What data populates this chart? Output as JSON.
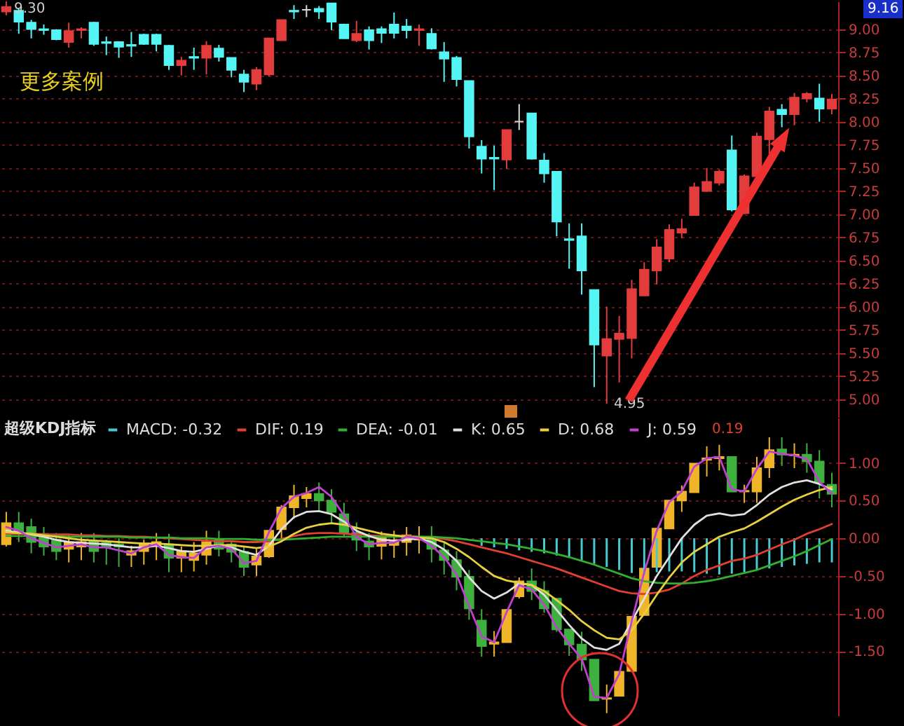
{
  "chart_data": [
    {
      "type": "candlestick",
      "categories": [
        null,
        null,
        null,
        null,
        null,
        null,
        null,
        null,
        null,
        null,
        null,
        null,
        null,
        null,
        null,
        null,
        null,
        null,
        null,
        null,
        null,
        null,
        null,
        null,
        null,
        null,
        null,
        null,
        null,
        null,
        null,
        null,
        null,
        null,
        null,
        null,
        null,
        null,
        null,
        null,
        null,
        null,
        null,
        null,
        null,
        null,
        null,
        null,
        null,
        null,
        null,
        null,
        null,
        null,
        null,
        null,
        null,
        null,
        null,
        null,
        null,
        null,
        null,
        null,
        null,
        null,
        null
      ],
      "ohlc": [
        [
          9.19,
          9.3,
          9.15,
          9.24
        ],
        [
          9.2,
          9.23,
          8.95,
          9.08
        ],
        [
          9.07,
          9.1,
          8.9,
          9.0
        ],
        [
          9.0,
          9.05,
          8.94,
          8.99
        ],
        [
          8.99,
          9.0,
          8.88,
          8.89
        ],
        [
          8.86,
          9.07,
          8.8,
          8.98
        ],
        [
          8.99,
          9.02,
          8.9,
          9.0
        ],
        [
          9.07,
          9.08,
          8.82,
          8.84
        ],
        [
          8.86,
          8.92,
          8.72,
          8.85
        ],
        [
          8.86,
          8.87,
          8.69,
          8.81
        ],
        [
          8.83,
          8.97,
          8.7,
          8.82
        ],
        [
          8.94,
          8.95,
          8.83,
          8.84
        ],
        [
          8.94,
          8.95,
          8.76,
          8.84
        ],
        [
          8.82,
          8.83,
          8.56,
          8.61
        ],
        [
          8.61,
          8.7,
          8.5,
          8.66
        ],
        [
          8.69,
          8.8,
          8.56,
          8.7
        ],
        [
          8.69,
          8.87,
          8.51,
          8.82
        ],
        [
          8.79,
          8.83,
          8.65,
          8.7
        ],
        [
          8.69,
          8.69,
          8.48,
          8.56
        ],
        [
          8.51,
          8.56,
          8.32,
          8.43
        ],
        [
          8.41,
          8.59,
          8.34,
          8.56
        ],
        [
          8.51,
          8.9,
          8.49,
          8.9
        ],
        [
          8.88,
          9.1,
          8.88,
          9.1
        ],
        [
          9.2,
          9.26,
          9.11,
          9.19
        ],
        [
          9.21,
          9.26,
          9.13,
          9.21
        ],
        [
          9.22,
          9.25,
          9.11,
          9.19
        ],
        [
          9.28,
          9.28,
          8.99,
          9.08
        ],
        [
          9.05,
          9.06,
          8.9,
          8.9
        ],
        [
          8.88,
          9.09,
          8.86,
          8.95
        ],
        [
          8.99,
          9.03,
          8.78,
          8.88
        ],
        [
          9.0,
          9.03,
          8.85,
          8.96
        ],
        [
          9.05,
          9.18,
          8.9,
          8.96
        ],
        [
          9.03,
          9.11,
          8.9,
          8.99
        ],
        [
          8.99,
          9.05,
          8.82,
          9.0
        ],
        [
          8.95,
          9.01,
          8.78,
          8.79
        ],
        [
          8.75,
          8.86,
          8.43,
          8.68
        ],
        [
          8.69,
          8.71,
          8.38,
          8.46
        ],
        [
          8.44,
          8.44,
          7.71,
          7.84
        ],
        [
          7.73,
          7.8,
          7.44,
          7.6
        ],
        [
          7.61,
          7.74,
          7.26,
          7.6
        ],
        [
          7.59,
          7.91,
          7.49,
          7.91
        ],
        [
          8.0,
          8.19,
          7.91,
          8.0
        ],
        [
          8.09,
          8.09,
          7.59,
          7.6
        ],
        [
          7.58,
          7.66,
          7.34,
          7.44
        ],
        [
          7.46,
          7.46,
          6.76,
          6.92
        ],
        [
          6.73,
          6.9,
          6.41,
          6.72
        ],
        [
          6.76,
          6.9,
          6.13,
          6.39
        ],
        [
          6.18,
          6.18,
          5.13,
          5.59
        ],
        [
          5.47,
          6.0,
          4.95,
          5.65
        ],
        [
          5.65,
          5.9,
          5.18,
          5.71
        ],
        [
          5.66,
          6.29,
          5.44,
          6.19
        ],
        [
          6.12,
          6.48,
          6.12,
          6.4
        ],
        [
          6.39,
          6.73,
          6.24,
          6.64
        ],
        [
          6.52,
          6.89,
          6.48,
          6.83
        ],
        [
          6.8,
          6.95,
          6.74,
          6.84
        ],
        [
          6.99,
          7.34,
          6.99,
          7.29
        ],
        [
          7.25,
          7.5,
          7.24,
          7.35
        ],
        [
          7.34,
          7.48,
          7.31,
          7.46
        ],
        [
          7.69,
          7.85,
          7.03,
          7.05
        ],
        [
          7.01,
          7.43,
          7.0,
          7.41
        ],
        [
          7.41,
          7.88,
          7.39,
          7.84
        ],
        [
          7.81,
          8.16,
          7.65,
          8.11
        ],
        [
          8.13,
          8.19,
          7.94,
          8.08
        ],
        [
          8.08,
          8.31,
          7.96,
          8.26
        ],
        [
          8.25,
          8.32,
          8.21,
          8.3
        ],
        [
          8.25,
          8.41,
          8.0,
          8.14
        ],
        [
          8.14,
          8.3,
          8.08,
          8.24
        ]
      ],
      "colors": [
        "#e23c3c",
        "#55f5f5",
        "#55f5f5",
        "#55f5f5",
        "#55f5f5",
        "#e23c3c",
        "#e23c3c",
        "#55f5f5",
        "#55f5f5",
        "#55f5f5",
        "#55f5f5",
        "#55f5f5",
        "#55f5f5",
        "#55f5f5",
        "#e23c3c",
        "#55f5f5",
        "#e23c3c",
        "#55f5f5",
        "#55f5f5",
        "#55f5f5",
        "#e23c3c",
        "#e23c3c",
        "#e23c3c",
        "#55f5f5",
        "#d8d8d8",
        "#55f5f5",
        "#55f5f5",
        "#55f5f5",
        "#e23c3c",
        "#55f5f5",
        "#55f5f5",
        "#55f5f5",
        "#55f5f5",
        "#e23c3c",
        "#55f5f5",
        "#55f5f5",
        "#55f5f5",
        "#55f5f5",
        "#55f5f5",
        "#55f5f5",
        "#e23c3c",
        "#d8d8d8",
        "#55f5f5",
        "#55f5f5",
        "#55f5f5",
        "#55f5f5",
        "#55f5f5",
        "#55f5f5",
        "#e23c3c",
        "#e23c3c",
        "#e23c3c",
        "#e23c3c",
        "#e23c3c",
        "#e23c3c",
        "#e23c3c",
        "#e23c3c",
        "#e23c3c",
        "#e23c3c",
        "#55f5f5",
        "#e23c3c",
        "#e23c3c",
        "#e23c3c",
        "#55f5f5",
        "#e23c3c",
        "#e23c3c",
        "#55f5f5",
        "#e23c3c"
      ],
      "ylim": [
        4.8,
        9.3
      ],
      "yticks": [
        {
          "value": 5,
          "label": "5.00"
        },
        {
          "value": 5.25,
          "label": "5.25"
        },
        {
          "value": 5.5,
          "label": "5.50"
        },
        {
          "value": 5.75,
          "label": "5.75"
        },
        {
          "value": 6,
          "label": "6.00"
        },
        {
          "value": 6.25,
          "label": "6.25"
        },
        {
          "value": 6.5,
          "label": "6.50"
        },
        {
          "value": 6.75,
          "label": "6.75"
        },
        {
          "value": 7,
          "label": "7.00"
        },
        {
          "value": 7.25,
          "label": "7.25"
        },
        {
          "value": 7.5,
          "label": "7.50"
        },
        {
          "value": 7.75,
          "label": "7.75"
        },
        {
          "value": 8,
          "label": "8.00"
        },
        {
          "value": 8.25,
          "label": "8.25"
        },
        {
          "value": 8.5,
          "label": "8.50"
        },
        {
          "value": 8.75,
          "label": "8.75"
        },
        {
          "value": 9,
          "label": "9.00"
        }
      ],
      "grid": "y",
      "tick_labels": "y",
      "annotations": [
        "更多案例",
        "9.16",
        "9.30",
        "4.95"
      ]
    },
    {
      "type": "candlestick",
      "categories": [
        null,
        null,
        null,
        null,
        null,
        null,
        null,
        null,
        null,
        null,
        null,
        null,
        null,
        null,
        null,
        null,
        null,
        null,
        null,
        null,
        null,
        null,
        null,
        null,
        null,
        null,
        null,
        null,
        null,
        null,
        null,
        null,
        null,
        null,
        null,
        null,
        null,
        null,
        null,
        null,
        null,
        null,
        null,
        null,
        null,
        null,
        null,
        null,
        null,
        null,
        null,
        null,
        null,
        null,
        null,
        null,
        null,
        null,
        null,
        null,
        null,
        null,
        null,
        null,
        null,
        null,
        null
      ],
      "ohlc": [
        [
          -0.08,
          0.35,
          -0.11,
          0.2
        ],
        [
          0.2,
          0.35,
          -0.05,
          0.09
        ],
        [
          0.15,
          0.26,
          -0.2,
          -0.05
        ],
        [
          0.06,
          0.15,
          -0.23,
          -0.11
        ],
        [
          -0.02,
          0.07,
          -0.29,
          -0.17
        ],
        [
          -0.14,
          0.04,
          -0.32,
          -0.06
        ],
        [
          -0.11,
          0.07,
          -0.29,
          -0.05
        ],
        [
          -0.04,
          0.07,
          -0.32,
          -0.17
        ],
        [
          -0.06,
          -0.02,
          -0.35,
          -0.11
        ],
        [
          -0.08,
          0.0,
          -0.38,
          -0.11
        ],
        [
          -0.22,
          -0.1,
          -0.38,
          -0.17
        ],
        [
          -0.17,
          -0.02,
          -0.35,
          -0.08
        ],
        [
          -0.1,
          0.07,
          -0.29,
          -0.05
        ],
        [
          -0.08,
          0.06,
          -0.45,
          -0.26
        ],
        [
          -0.26,
          -0.11,
          -0.45,
          -0.17
        ],
        [
          -0.29,
          -0.05,
          -0.44,
          -0.2
        ],
        [
          -0.22,
          0.1,
          -0.35,
          -0.05
        ],
        [
          -0.01,
          0.1,
          -0.24,
          -0.14
        ],
        [
          -0.08,
          -0.04,
          -0.32,
          -0.18
        ],
        [
          -0.18,
          -0.11,
          -0.5,
          -0.38
        ],
        [
          -0.35,
          -0.14,
          -0.5,
          -0.24
        ],
        [
          -0.24,
          0.1,
          -0.26,
          0.1
        ],
        [
          0.12,
          0.44,
          -0.05,
          0.41
        ],
        [
          0.41,
          0.71,
          0.26,
          0.56
        ],
        [
          0.53,
          0.68,
          0.41,
          0.59
        ],
        [
          0.59,
          0.74,
          0.35,
          0.5
        ],
        [
          0.5,
          0.65,
          0.2,
          0.35
        ],
        [
          0.32,
          0.47,
          0.01,
          0.07
        ],
        [
          0.07,
          0.21,
          -0.17,
          -0.02
        ],
        [
          -0.04,
          0.07,
          -0.29,
          -0.11
        ],
        [
          -0.1,
          0.09,
          -0.28,
          0.0
        ],
        [
          -0.09,
          0.1,
          -0.26,
          -0.05
        ],
        [
          -0.05,
          0.15,
          -0.23,
          0.04
        ],
        [
          -0.02,
          0.16,
          -0.2,
          0.02
        ],
        [
          0.01,
          0.16,
          -0.32,
          -0.14
        ],
        [
          -0.16,
          -0.05,
          -0.48,
          -0.29
        ],
        [
          -0.29,
          -0.17,
          -0.69,
          -0.51
        ],
        [
          -0.51,
          -0.42,
          -1.08,
          -0.93
        ],
        [
          -1.09,
          -0.94,
          -1.57,
          -1.43
        ],
        [
          -1.4,
          -1.23,
          -1.57,
          -1.38
        ],
        [
          -1.38,
          -0.94,
          -1.38,
          -0.95
        ],
        [
          -0.77,
          -0.52,
          -0.8,
          -0.57
        ],
        [
          -0.57,
          -0.4,
          -0.82,
          -0.7
        ],
        [
          -0.7,
          -0.57,
          -0.99,
          -0.93
        ],
        [
          -0.8,
          -0.8,
          -1.24,
          -1.21
        ],
        [
          -1.21,
          -1.21,
          -1.56,
          -1.41
        ],
        [
          -1.41,
          -1.24,
          -1.76,
          -1.61
        ],
        [
          -1.61,
          -1.61,
          -2.15,
          -2.15
        ],
        [
          -2.13,
          -1.94,
          -2.32,
          -2.12
        ],
        [
          -2.09,
          -1.77,
          -2.09,
          -1.77
        ],
        [
          -1.76,
          -1.04,
          -1.76,
          -1.04
        ],
        [
          -1.02,
          -0.4,
          -1.02,
          -0.4
        ],
        [
          -0.38,
          0.13,
          -0.38,
          0.13
        ],
        [
          0.13,
          0.5,
          0.13,
          0.5
        ],
        [
          0.5,
          0.7,
          0.35,
          0.62
        ],
        [
          0.61,
          0.99,
          0.61,
          0.99
        ],
        [
          1.04,
          1.22,
          0.82,
          1.06
        ],
        [
          1.06,
          1.24,
          0.9,
          1.08
        ],
        [
          1.08,
          1.08,
          0.62,
          0.62
        ],
        [
          0.62,
          0.71,
          0.47,
          0.63
        ],
        [
          0.62,
          1.08,
          0.47,
          0.93
        ],
        [
          0.94,
          1.34,
          0.8,
          1.17
        ],
        [
          1.18,
          1.34,
          0.96,
          1.11
        ],
        [
          1.1,
          1.26,
          0.93,
          1.11
        ],
        [
          1.11,
          1.26,
          0.87,
          1.02
        ],
        [
          1.02,
          1.17,
          0.53,
          0.74
        ],
        [
          0.71,
          0.87,
          0.41,
          0.59
        ]
      ],
      "colors": [
        "#f0b429",
        "#3db03d",
        "#3db03d",
        "#3db03d",
        "#3db03d",
        "#f0b429",
        "#f0b429",
        "#3db03d",
        "#3db03d",
        "#3db03d",
        "#f0b429",
        "#f0b429",
        "#f0b429",
        "#3db03d",
        "#f0b429",
        "#f0b429",
        "#f0b429",
        "#3db03d",
        "#3db03d",
        "#3db03d",
        "#f0b429",
        "#f0b429",
        "#f0b429",
        "#f0b429",
        "#f0b429",
        "#3db03d",
        "#3db03d",
        "#3db03d",
        "#3db03d",
        "#3db03d",
        "#f0b429",
        "#f0b429",
        "#f0b429",
        "#f0b429",
        "#3db03d",
        "#3db03d",
        "#3db03d",
        "#3db03d",
        "#3db03d",
        "#f0b429",
        "#f0b429",
        "#f0b429",
        "#3db03d",
        "#3db03d",
        "#3db03d",
        "#3db03d",
        "#3db03d",
        "#3db03d",
        "#f0b429",
        "#f0b429",
        "#f0b429",
        "#f0b429",
        "#f0b429",
        "#f0b429",
        "#f0b429",
        "#f0b429",
        "#f0b429",
        "#f0b429",
        "#3db03d",
        "#f0b429",
        "#f0b429",
        "#f0b429",
        "#3db03d",
        "#f0b429",
        "#3db03d",
        "#3db03d",
        "#3db03d"
      ],
      "series": [
        {
          "type": "bar",
          "name": "MACD: -0.32",
          "color": "#48c8d0",
          "values": [
            null,
            null,
            null,
            null,
            null,
            null,
            null,
            null,
            null,
            null,
            null,
            null,
            null,
            null,
            null,
            null,
            null,
            null,
            null,
            null,
            null,
            null,
            null,
            null,
            null,
            null,
            null,
            null,
            null,
            null,
            null,
            null,
            null,
            null,
            null,
            null,
            null,
            null,
            -0.1,
            -0.12,
            -0.14,
            -0.16,
            -0.18,
            -0.2,
            -0.23,
            -0.26,
            -0.3,
            -0.34,
            -0.38,
            -0.42,
            -0.46,
            -0.48,
            -0.45,
            -0.44,
            -0.44,
            -0.45,
            -0.47,
            -0.48,
            -0.47,
            -0.45,
            -0.42,
            -0.4,
            -0.38,
            -0.36,
            -0.34,
            -0.32,
            -0.32
          ]
        },
        {
          "type": "line",
          "name": "DIF: 0.19",
          "color": "#e04030",
          "values": [
            0.06,
            0.06,
            0.06,
            0.05,
            0.05,
            0.05,
            0.04,
            0.04,
            0.03,
            0.03,
            0.02,
            0.02,
            0.01,
            0.0,
            -0.01,
            -0.02,
            -0.03,
            -0.04,
            -0.04,
            -0.05,
            -0.05,
            -0.04,
            -0.01,
            0.03,
            0.06,
            0.07,
            0.07,
            0.06,
            0.05,
            0.04,
            0.03,
            0.03,
            0.03,
            0.02,
            0.01,
            -0.01,
            -0.04,
            -0.08,
            -0.12,
            -0.16,
            -0.2,
            -0.25,
            -0.3,
            -0.35,
            -0.4,
            -0.46,
            -0.52,
            -0.58,
            -0.64,
            -0.7,
            -0.73,
            -0.74,
            -0.72,
            -0.68,
            -0.6,
            -0.5,
            -0.42,
            -0.36,
            -0.3,
            -0.27,
            -0.22,
            -0.15,
            -0.08,
            -0.02,
            0.06,
            0.12,
            0.19
          ]
        },
        {
          "type": "line",
          "name": "DEA: -0.01",
          "color": "#30b030",
          "values": [
            0.03,
            0.03,
            0.03,
            0.03,
            0.03,
            0.02,
            0.02,
            0.02,
            0.02,
            0.02,
            0.01,
            0.01,
            0.01,
            0.01,
            0.0,
            0.0,
            0.0,
            -0.01,
            -0.01,
            -0.01,
            -0.02,
            -0.02,
            -0.02,
            -0.01,
            0.0,
            0.01,
            0.02,
            0.02,
            0.02,
            0.02,
            0.02,
            0.02,
            0.02,
            0.02,
            0.02,
            0.01,
            0.0,
            -0.02,
            -0.04,
            -0.06,
            -0.08,
            -0.11,
            -0.14,
            -0.17,
            -0.21,
            -0.25,
            -0.3,
            -0.35,
            -0.41,
            -0.47,
            -0.53,
            -0.57,
            -0.59,
            -0.6,
            -0.6,
            -0.59,
            -0.57,
            -0.54,
            -0.5,
            -0.46,
            -0.42,
            -0.36,
            -0.3,
            -0.24,
            -0.17,
            -0.09,
            -0.01
          ]
        },
        {
          "type": "line",
          "name": "K: 0.65",
          "color": "#e0e0e0",
          "values": [
            0.1,
            0.08,
            0.05,
            0.02,
            -0.02,
            -0.05,
            -0.06,
            -0.07,
            -0.08,
            -0.1,
            -0.12,
            -0.12,
            -0.1,
            -0.13,
            -0.17,
            -0.18,
            -0.14,
            -0.1,
            -0.12,
            -0.18,
            -0.22,
            -0.1,
            0.12,
            0.28,
            0.35,
            0.36,
            0.32,
            0.22,
            0.1,
            0.03,
            -0.02,
            -0.03,
            -0.02,
            0.0,
            -0.05,
            -0.15,
            -0.3,
            -0.52,
            -0.7,
            -0.8,
            -0.72,
            -0.6,
            -0.62,
            -0.75,
            -0.95,
            -1.15,
            -1.33,
            -1.45,
            -1.48,
            -1.4,
            -1.1,
            -0.8,
            -0.5,
            -0.25,
            0.0,
            0.18,
            0.3,
            0.33,
            0.3,
            0.32,
            0.44,
            0.58,
            0.68,
            0.74,
            0.77,
            0.72,
            0.65
          ]
        },
        {
          "type": "line",
          "name": "D: 0.68",
          "color": "#e8d040",
          "values": [
            0.08,
            0.07,
            0.06,
            0.04,
            0.02,
            0.0,
            -0.02,
            -0.03,
            -0.04,
            -0.05,
            -0.06,
            -0.07,
            -0.07,
            -0.08,
            -0.09,
            -0.1,
            -0.1,
            -0.09,
            -0.09,
            -0.11,
            -0.13,
            -0.11,
            -0.04,
            0.06,
            0.14,
            0.18,
            0.2,
            0.18,
            0.14,
            0.1,
            0.06,
            0.04,
            0.02,
            0.01,
            0.0,
            -0.05,
            -0.14,
            -0.25,
            -0.38,
            -0.5,
            -0.56,
            -0.59,
            -0.62,
            -0.7,
            -0.82,
            -0.95,
            -1.1,
            -1.22,
            -1.32,
            -1.34,
            -1.22,
            -1.0,
            -0.75,
            -0.52,
            -0.32,
            -0.18,
            -0.08,
            0.02,
            0.08,
            0.13,
            0.22,
            0.32,
            0.42,
            0.51,
            0.58,
            0.64,
            0.68
          ]
        },
        {
          "type": "line",
          "name": "J: 0.59",
          "color": "#c040d0",
          "values": [
            0.15,
            0.1,
            0.0,
            -0.06,
            -0.12,
            -0.1,
            -0.08,
            -0.12,
            -0.12,
            -0.16,
            -0.2,
            -0.12,
            -0.08,
            -0.22,
            -0.25,
            -0.26,
            -0.12,
            -0.1,
            -0.14,
            -0.33,
            -0.3,
            0.08,
            0.4,
            0.55,
            0.6,
            0.68,
            0.55,
            0.3,
            0.02,
            -0.08,
            -0.06,
            -0.06,
            0.02,
            0.0,
            -0.1,
            -0.25,
            -0.48,
            -0.9,
            -1.3,
            -1.38,
            -0.98,
            -0.62,
            -0.68,
            -0.88,
            -1.18,
            -1.4,
            -1.6,
            -2.1,
            -2.12,
            -1.8,
            -1.1,
            -0.45,
            0.1,
            0.48,
            0.62,
            0.95,
            1.06,
            1.08,
            0.65,
            0.62,
            0.92,
            1.15,
            1.12,
            1.1,
            1.05,
            0.75,
            0.59
          ]
        }
      ],
      "ylim": [
        -2.36,
        1.6
      ],
      "yticks": [
        {
          "value": -1.5,
          "label": "-1.50"
        },
        {
          "value": -1,
          "label": "-1.00"
        },
        {
          "value": -0.5,
          "label": "-0.50"
        },
        {
          "value": 0,
          "label": "0.00"
        },
        {
          "value": 0.5,
          "label": "0.50"
        },
        {
          "value": 1,
          "label": "1.00"
        }
      ],
      "grid": "y",
      "tick_labels": "y",
      "legend": "top left",
      "legend_title": "超级KDJ指标",
      "annotations": [
        "0.19"
      ]
    }
  ]
}
